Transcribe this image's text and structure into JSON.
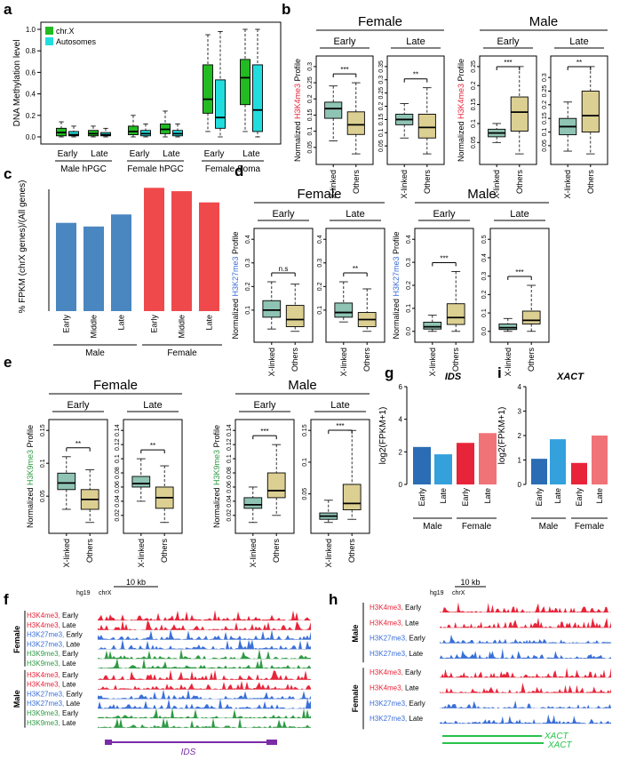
{
  "colors": {
    "chrX_green": "#22bb22",
    "autosome_cyan": "#22dddd",
    "xlinked_box": "#8fc4b4",
    "others_box": "#dccf92",
    "bar_blue": "#4a86c0",
    "bar_red": "#f0494c",
    "h3k4": "#e8253a",
    "h3k27": "#3a6fd8",
    "h3k9": "#2e9a44",
    "g_early_male": "#2a6db5",
    "g_late_male": "#34a0dc",
    "g_early_female": "#e8243a",
    "g_late_female": "#f07378",
    "ids_purple": "#7a2ca8",
    "xact_green": "#27c24a"
  },
  "panels": {
    "a": {
      "label": "a",
      "chart_data": {
        "type": "box",
        "ylabel": "DNA Methylation level",
        "ylim": [
          0,
          1
        ],
        "yticks": [
          "0.0",
          "0.2",
          "0.4",
          "0.6",
          "0.8",
          "1.0"
        ],
        "legend": [
          "chr.X",
          "Autosomes"
        ],
        "categories": [
          "Early",
          "Late",
          "Early",
          "Late",
          "Early",
          "Late"
        ],
        "groups": [
          "Male hPGC",
          "Female hPGC",
          "Female Soma"
        ],
        "series": [
          {
            "name": "chr.X",
            "boxes": [
              [
                0,
                0.01,
                0.04,
                0.08,
                0.14
              ],
              [
                0,
                0.01,
                0.03,
                0.06,
                0.1
              ],
              [
                0,
                0.02,
                0.05,
                0.1,
                0.2
              ],
              [
                0,
                0.03,
                0.07,
                0.12,
                0.24
              ],
              [
                0.05,
                0.22,
                0.35,
                0.67,
                0.95
              ],
              [
                0.05,
                0.3,
                0.55,
                0.72,
                1.0
              ]
            ]
          },
          {
            "name": "Autosomes",
            "boxes": [
              [
                0,
                0.01,
                0.02,
                0.05,
                0.1
              ],
              [
                0,
                0.01,
                0.02,
                0.04,
                0.08
              ],
              [
                0,
                0.01,
                0.03,
                0.06,
                0.12
              ],
              [
                0,
                0.01,
                0.03,
                0.06,
                0.12
              ],
              [
                0,
                0.08,
                0.18,
                0.53,
                0.98
              ],
              [
                0,
                0.05,
                0.25,
                0.67,
                1.0
              ]
            ]
          }
        ]
      }
    },
    "b": {
      "label": "b",
      "ylabel_prefix": "Normalized ",
      "mark": "H3K4me3",
      "ylabel_suffix": " Profile",
      "female": "Female",
      "male": "Male",
      "plots": [
        {
          "title": "Early",
          "ticks": [
            "0.05",
            "0.1",
            "0.15",
            "0.2",
            "0.25",
            "0.3"
          ],
          "sig": "***",
          "boxes": [
            [
              0.07,
              0.14,
              0.17,
              0.19,
              0.24
            ],
            [
              0.03,
              0.09,
              0.12,
              0.16,
              0.25
            ]
          ]
        },
        {
          "title": "Late",
          "ticks": [
            "0.05",
            "0.1",
            "0.15",
            "0.2",
            "0.25",
            "0.3",
            "0.35"
          ],
          "sig": "**",
          "boxes": [
            [
              0.08,
              0.13,
              0.15,
              0.17,
              0.21
            ],
            [
              0.02,
              0.08,
              0.12,
              0.17,
              0.27
            ]
          ]
        },
        {
          "title": "Early",
          "ticks": [
            "0.05",
            "0.1",
            "0.15",
            "0.2",
            "0.25"
          ],
          "sig": "***",
          "boxes": [
            [
              0.05,
              0.065,
              0.075,
              0.085,
              0.1
            ],
            [
              0.02,
              0.08,
              0.13,
              0.17,
              0.25
            ]
          ]
        },
        {
          "title": "Late",
          "ticks": [
            "0.05",
            "0.1",
            "0.15",
            "0.2",
            "0.25",
            "0.3"
          ],
          "sig": "**",
          "boxes": [
            [
              0.03,
              0.09,
              0.12,
              0.15,
              0.21
            ],
            [
              0.02,
              0.1,
              0.16,
              0.25,
              0.34
            ]
          ]
        }
      ],
      "xcats": [
        "X-linked",
        "Others"
      ]
    },
    "c": {
      "label": "c",
      "chart_data": {
        "type": "bar",
        "ylabel": "% FPKM (chrX genes)/(All genes)",
        "categories": [
          "Early",
          "Middle",
          "Late",
          "Early",
          "Middle",
          "Late"
        ],
        "groups": [
          "Male",
          "Female"
        ],
        "values": [
          3.15,
          3.02,
          3.45,
          4.4,
          4.28,
          3.88
        ],
        "ylim": [
          0,
          4.6
        ]
      }
    },
    "d": {
      "label": "d",
      "ylabel_prefix": "Normalized ",
      "mark": "H3K27me3",
      "ylabel_suffix": " Profile",
      "female": "Female",
      "male": "Male",
      "plots": [
        {
          "title": "Early",
          "ticks": [
            "0.1",
            "0.2",
            "0.3",
            "0.4"
          ],
          "sig": "n.s",
          "boxes": [
            [
              0.02,
              0.07,
              0.1,
              0.14,
              0.22
            ],
            [
              0.01,
              0.03,
              0.06,
              0.12,
              0.21
            ]
          ]
        },
        {
          "title": "Late",
          "ticks": [
            "0.1",
            "0.2",
            "0.3",
            "0.4"
          ],
          "sig": "**",
          "boxes": [
            [
              0.05,
              0.07,
              0.09,
              0.13,
              0.22
            ],
            [
              0.01,
              0.03,
              0.06,
              0.09,
              0.19
            ]
          ]
        },
        {
          "title": "Early",
          "ticks": [
            "0.0",
            "0.1",
            "0.2",
            "0.3",
            "0.4"
          ],
          "sig": "***",
          "boxes": [
            [
              0.0,
              0.01,
              0.02,
              0.04,
              0.07
            ],
            [
              0.0,
              0.03,
              0.06,
              0.12,
              0.26
            ]
          ]
        },
        {
          "title": "Late",
          "ticks": [
            "0.0",
            "0.1",
            "0.2",
            "0.3",
            "0.4",
            "0.5"
          ],
          "sig": "***",
          "boxes": [
            [
              0.0,
              0.01,
              0.02,
              0.04,
              0.07
            ],
            [
              0.0,
              0.04,
              0.06,
              0.11,
              0.25
            ]
          ]
        }
      ],
      "xcats": [
        "X-linked",
        "Others"
      ]
    },
    "e": {
      "label": "e",
      "ylabel_prefix": "Normalized ",
      "mark": "H3K9me3",
      "ylabel_suffix": " Profile",
      "female": "Female",
      "male": "Male",
      "plots": [
        {
          "title": "Early",
          "ticks": [
            "0.05",
            "0.1",
            "0.15"
          ],
          "sig": "**",
          "boxes": [
            [
              0.03,
              0.06,
              0.07,
              0.085,
              0.11
            ],
            [
              0.01,
              0.03,
              0.045,
              0.06,
              0.09
            ]
          ]
        },
        {
          "title": "Late",
          "ticks": [
            "0.02",
            "0.04",
            "0.06",
            "0.08",
            "0.1",
            "0.12",
            "0.14"
          ],
          "sig": "**",
          "boxes": [
            [
              0.04,
              0.06,
              0.065,
              0.075,
              0.1
            ],
            [
              0.01,
              0.03,
              0.045,
              0.06,
              0.09
            ]
          ]
        },
        {
          "title": "Early",
          "ticks": [
            "0.02",
            "0.04",
            "0.06",
            "0.08",
            "0.1",
            "0.12",
            "0.14"
          ],
          "sig": "***",
          "boxes": [
            [
              0.01,
              0.03,
              0.035,
              0.045,
              0.06
            ],
            [
              0.02,
              0.045,
              0.055,
              0.08,
              0.12
            ]
          ]
        },
        {
          "title": "Late",
          "ticks": [
            "0.05",
            "0.1",
            "0.15"
          ],
          "sig": "***",
          "boxes": [
            [
              0.005,
              0.01,
              0.015,
              0.02,
              0.04
            ],
            [
              0.01,
              0.025,
              0.035,
              0.065,
              0.15
            ]
          ]
        }
      ],
      "xcats": [
        "X-linked",
        "Others"
      ]
    },
    "g": {
      "label": "g",
      "chart_data": {
        "type": "bar",
        "title": "IDS",
        "ylabel": "log2(FPKM+1)",
        "ylim": [
          0,
          6
        ],
        "yticks": [
          "0",
          "2",
          "4",
          "6"
        ],
        "categories": [
          "Early",
          "Late",
          "Early",
          "Late"
        ],
        "groups": [
          "Male",
          "Female"
        ],
        "values": [
          2.3,
          1.85,
          2.55,
          3.15
        ]
      }
    },
    "i": {
      "label": "i",
      "chart_data": {
        "type": "bar",
        "title": "XACT",
        "ylabel": "log2(FPKM+1)",
        "ylim": [
          0,
          4
        ],
        "yticks": [
          "0",
          "1",
          "2",
          "3",
          "4"
        ],
        "categories": [
          "Early",
          "Late",
          "Early",
          "Late"
        ],
        "groups": [
          "Male",
          "Female"
        ],
        "values": [
          1.05,
          1.85,
          0.88,
          2.0
        ]
      }
    },
    "f": {
      "label": "f",
      "genome": "hg19",
      "chrom": "chrX",
      "scale": "10 kb",
      "gene": "IDS",
      "groups": [
        "Female",
        "Male"
      ],
      "tracks": [
        {
          "mark": "H3K4me3",
          "stage": "Early",
          "color": "h3k4"
        },
        {
          "mark": "H3K4me3",
          "stage": "Late",
          "color": "h3k4"
        },
        {
          "mark": "H3K27me3",
          "stage": "Early",
          "color": "h3k27"
        },
        {
          "mark": "H3K27me3",
          "stage": "Late",
          "color": "h3k27"
        },
        {
          "mark": "H3K9me3",
          "stage": "Early",
          "color": "h3k9"
        },
        {
          "mark": "H3K9me3",
          "stage": "Late",
          "color": "h3k9"
        },
        {
          "mark": "H3K4me3",
          "stage": "Early",
          "color": "h3k4"
        },
        {
          "mark": "H3K4me3",
          "stage": "Late",
          "color": "h3k4"
        },
        {
          "mark": "H3K27me3",
          "stage": "Early",
          "color": "h3k27"
        },
        {
          "mark": "H3K27me3",
          "stage": "Late",
          "color": "h3k27"
        },
        {
          "mark": "H3K9me3",
          "stage": "Early",
          "color": "h3k9"
        },
        {
          "mark": "H3K9me3",
          "stage": "Late",
          "color": "h3k9"
        }
      ]
    },
    "h": {
      "label": "h",
      "genome": "hg19",
      "chrom": "chrX",
      "scale": "10 kb",
      "gene": "XACT",
      "groups": [
        "Male",
        "Female"
      ],
      "tracks": [
        {
          "mark": "H3K4me3",
          "stage": "Early",
          "color": "h3k4"
        },
        {
          "mark": "H3K4me3",
          "stage": "Late",
          "color": "h3k4"
        },
        {
          "mark": "H3K27me3",
          "stage": "Early",
          "color": "h3k27"
        },
        {
          "mark": "H3K27me3",
          "stage": "Late",
          "color": "h3k27"
        },
        {
          "mark": "H3K4me3",
          "stage": "Early",
          "color": "h3k4"
        },
        {
          "mark": "H3K4me3",
          "stage": "Late",
          "color": "h3k4"
        },
        {
          "mark": "H3K27me3",
          "stage": "Early",
          "color": "h3k27"
        },
        {
          "mark": "H3K27me3",
          "stage": "Late",
          "color": "h3k27"
        }
      ]
    }
  }
}
